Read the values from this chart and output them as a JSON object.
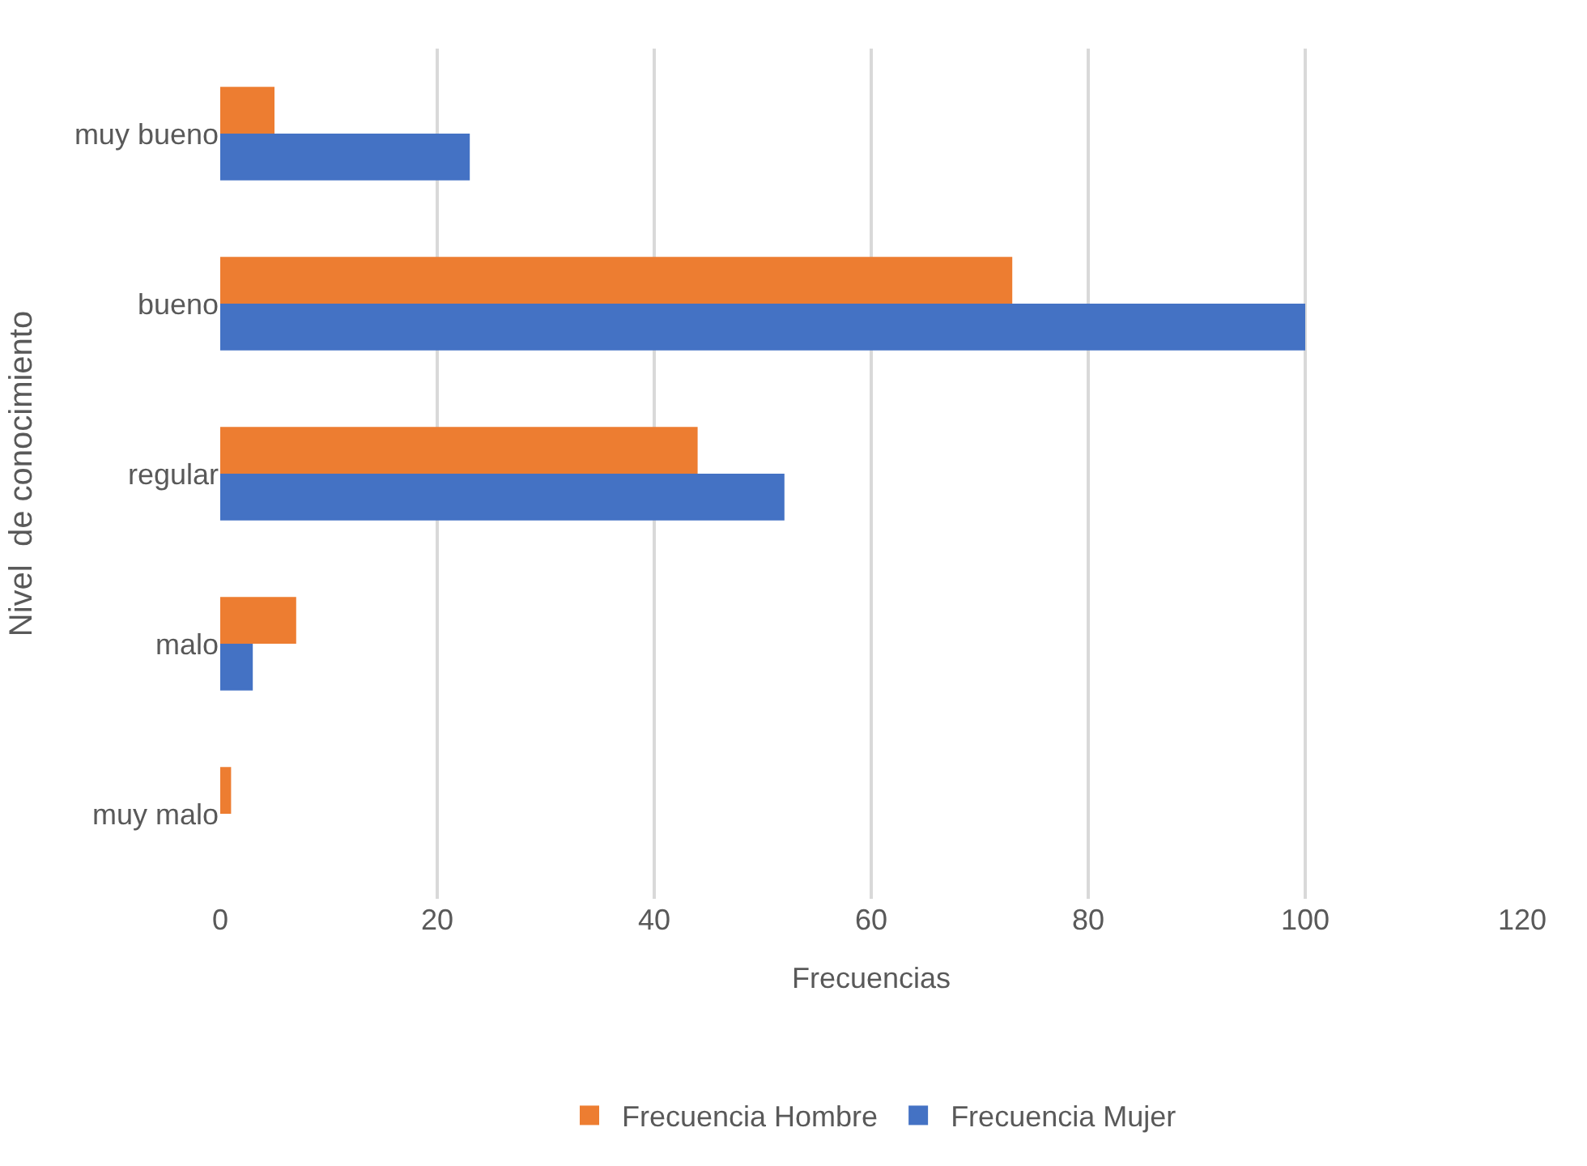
{
  "chart_data": {
    "type": "bar",
    "orientation": "horizontal",
    "xlabel": "Frecuencias",
    "ylabel": "Nivel  de conocimiento",
    "categories": [
      "muy bueno",
      "bueno",
      "regular",
      "malo",
      "muy malo"
    ],
    "series": [
      {
        "name": "Frecuencia Hombre",
        "color": "#ed7d31",
        "values": [
          5,
          73,
          44,
          7,
          1
        ]
      },
      {
        "name": "Frecuencia Mujer",
        "color": "#4472c4",
        "values": [
          23,
          100,
          52,
          3,
          0
        ]
      }
    ],
    "xlim": [
      0,
      120
    ],
    "xticks": [
      0,
      20,
      40,
      60,
      80,
      100,
      120
    ],
    "grid": "x",
    "legend": "bottom"
  }
}
